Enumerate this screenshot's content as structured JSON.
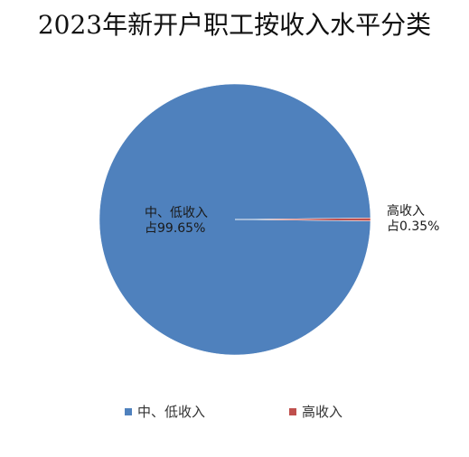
{
  "chart_data": {
    "type": "pie",
    "title": "2023年新开户职工按收入水平分类",
    "categories": [
      "中、低收入",
      "高收入"
    ],
    "values": [
      99.65,
      0.35
    ],
    "unit": "%",
    "colors": [
      "#4f81bd",
      "#c0504d"
    ],
    "data_labels": [
      {
        "name": "中、低收入",
        "value_text": "占99.65%"
      },
      {
        "name": "高收入",
        "value_text": "占0.35%"
      }
    ],
    "legend": {
      "position": "bottom",
      "entries": [
        "中、低收入",
        "高收入"
      ]
    }
  }
}
